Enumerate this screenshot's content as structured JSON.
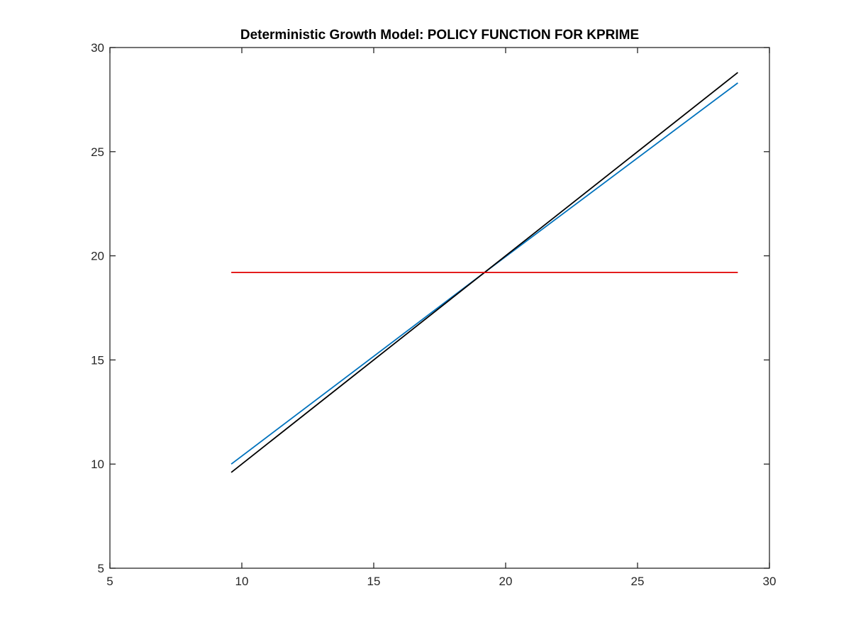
{
  "chart_data": {
    "type": "line",
    "title": "Deterministic Growth Model: POLICY FUNCTION FOR KPRIME",
    "xlabel": "",
    "ylabel": "",
    "xlim": [
      5,
      30
    ],
    "ylim": [
      5,
      30
    ],
    "x_ticks": [
      "5",
      "10",
      "15",
      "20",
      "25",
      "30"
    ],
    "y_ticks": [
      "5",
      "10",
      "15",
      "20",
      "25",
      "30"
    ],
    "grid": false,
    "series": [
      {
        "color": "#0072bd",
        "x": [
          9.6,
          19.2,
          28.8
        ],
        "y": [
          10.0,
          19.2,
          28.3
        ]
      },
      {
        "color": "#000000",
        "x": [
          9.6,
          28.8
        ],
        "y": [
          9.6,
          28.8
        ]
      },
      {
        "color": "#e00000",
        "x": [
          9.6,
          28.8
        ],
        "y": [
          19.2,
          19.2
        ]
      }
    ]
  }
}
